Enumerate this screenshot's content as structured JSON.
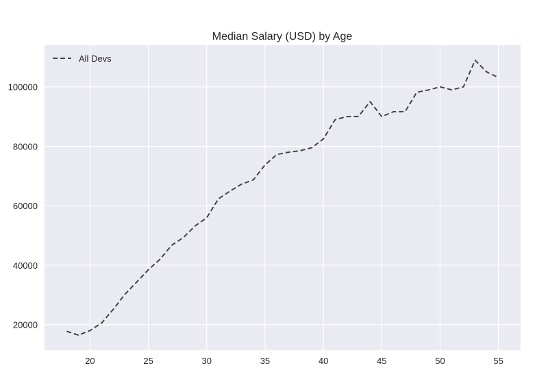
{
  "chart_data": {
    "type": "line",
    "title": "Median Salary (USD) by Age",
    "xlabel": "",
    "ylabel": "",
    "xlim": [
      16.1,
      56.9
    ],
    "ylim": [
      11400,
      114000
    ],
    "x_ticks": [
      20,
      25,
      30,
      35,
      40,
      45,
      50,
      55
    ],
    "y_ticks": [
      20000,
      40000,
      60000,
      80000,
      100000
    ],
    "grid": true,
    "legend_position": "top-left",
    "background": "#eaeaf2",
    "series": [
      {
        "name": "All Devs",
        "color": "#444444",
        "line_style": "dashed",
        "x": [
          18,
          19,
          20,
          21,
          22,
          23,
          24,
          25,
          26,
          27,
          28,
          29,
          30,
          31,
          32,
          33,
          34,
          35,
          36,
          37,
          38,
          39,
          40,
          41,
          42,
          43,
          44,
          45,
          46,
          47,
          48,
          49,
          50,
          51,
          52,
          53,
          54,
          55
        ],
        "values": [
          17784,
          16500,
          18012,
          20628,
          25206,
          30252,
          34368,
          38496,
          42000,
          46752,
          49320,
          53200,
          56000,
          62316,
          64928,
          67317,
          68748,
          73752,
          77232,
          78000,
          78508,
          79536,
          82488,
          88935,
          90000,
          90056,
          95000,
          90000,
          91633,
          91660,
          98150,
          98964,
          100000,
          98988,
          100000,
          108923,
          105000,
          103117
        ]
      }
    ]
  }
}
